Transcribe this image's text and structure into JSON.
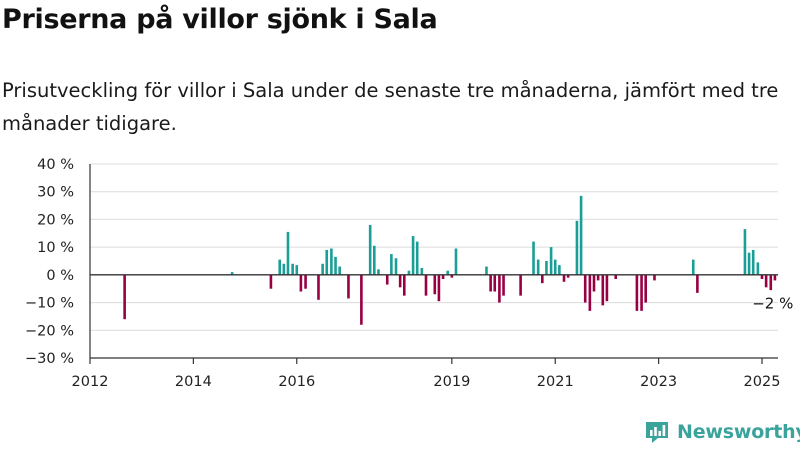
{
  "title": "Priserna på villor sjönk i Sala",
  "subtitle": "Prisutveckling för villor i Sala under de senaste tre månaderna, jämfört med tre månader tidigare.",
  "brand": "Newsworthy",
  "colors": {
    "positive": "#1a9e96",
    "negative": "#990044",
    "brand": "#3aa39c"
  },
  "chart_data": {
    "type": "bar",
    "xlabel": "",
    "ylabel": "",
    "ylim": [
      -30,
      40
    ],
    "xlim": [
      2012.0,
      2025.85
    ],
    "grid": true,
    "y_ticks": [
      40,
      30,
      20,
      10,
      0,
      -10,
      -20,
      -30
    ],
    "y_tick_labels": [
      "40 %",
      "30 %",
      "20 %",
      "10 %",
      "0 %",
      "−10 %",
      "−20 %",
      "−30 %"
    ],
    "x_ticks": [
      2012,
      2014,
      2016,
      2019,
      2021,
      2023,
      2025
    ],
    "x_tick_labels": [
      "2012",
      "2014",
      "2016",
      "2019",
      "2021",
      "2023",
      "2025"
    ],
    "annotation": {
      "label": "−2 %",
      "x": 2025.17,
      "y": -2
    },
    "series": [
      {
        "x": [
          2012.67,
          2014.75,
          2015.5,
          2015.67,
          2015.75,
          2015.83,
          2015.92,
          2016.0,
          2016.08,
          2016.17,
          2016.42,
          2016.5,
          2016.58,
          2016.67,
          2016.75,
          2016.83,
          2017.0,
          2017.25,
          2017.42,
          2017.5,
          2017.58,
          2017.75,
          2017.83,
          2017.92,
          2018.0,
          2018.08,
          2018.17,
          2018.25,
          2018.33,
          2018.42,
          2018.5,
          2018.67,
          2018.75,
          2018.83,
          2018.92,
          2019.0,
          2019.08,
          2019.67,
          2019.75,
          2019.83,
          2019.92,
          2020.0,
          2020.33,
          2020.58,
          2020.67,
          2020.75,
          2020.83,
          2020.92,
          2021.0,
          2021.08,
          2021.17,
          2021.25,
          2021.42,
          2021.5,
          2021.58,
          2021.67,
          2021.75,
          2021.83,
          2021.92,
          2022.0,
          2022.17,
          2022.58,
          2022.67,
          2022.75,
          2022.92,
          2023.67,
          2023.75,
          2024.67,
          2024.75,
          2024.83,
          2024.92,
          2025.0,
          2025.08,
          2025.17,
          2025.25
        ],
        "values": [
          -16,
          1,
          -5,
          5.5,
          4,
          15.5,
          4,
          3.5,
          -6,
          -5,
          -9,
          4,
          9,
          9.5,
          6.5,
          3,
          -8.5,
          -18,
          18,
          10.5,
          2,
          -3.5,
          7.5,
          6,
          -4.5,
          -7.5,
          1.5,
          14,
          12,
          2.5,
          -7.5,
          -7,
          -9.5,
          -1.5,
          1.5,
          -1,
          9.5,
          3,
          -6,
          -6,
          -10,
          -7.5,
          -7.5,
          12,
          5.5,
          -3,
          5,
          10,
          5.5,
          3.5,
          -2.5,
          -1,
          19.5,
          28.5,
          -10,
          -13,
          -6,
          -2,
          -11,
          -9.5,
          -1.5,
          -13,
          -13,
          -10,
          -2,
          5.5,
          -6.5,
          16.5,
          8,
          9,
          4.5,
          -1.5,
          -4.5,
          -5.5,
          -2
        ]
      }
    ]
  }
}
